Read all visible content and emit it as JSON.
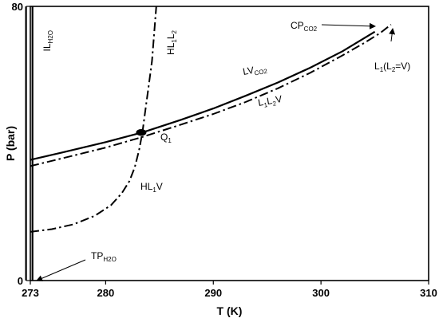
{
  "chart_data": {
    "type": "line",
    "xlabel": "T (K)",
    "ylabel": "P (bar)",
    "xlim": [
      273,
      310
    ],
    "ylim": [
      0,
      80
    ],
    "x_ticks": [
      "273",
      "280",
      "290",
      "300",
      "310"
    ],
    "y_ticks": [
      "0",
      "80"
    ],
    "grid": false,
    "series": [
      {
        "name": "LV_CO2",
        "style": "solid",
        "points": [
          [
            273,
            35.2
          ],
          [
            276,
            37.4
          ],
          [
            280,
            40.4
          ],
          [
            283.5,
            43.3
          ],
          [
            287,
            46.9
          ],
          [
            290,
            50.2
          ],
          [
            293,
            53.9
          ],
          [
            296,
            57.8
          ],
          [
            299,
            62.1
          ],
          [
            302,
            66.9
          ],
          [
            305,
            72.6
          ]
        ]
      },
      {
        "name": "L1L2V",
        "style": "dash-dot",
        "points": [
          [
            273,
            33.4
          ],
          [
            276,
            35.7
          ],
          [
            280,
            38.8
          ],
          [
            283.3,
            41.8
          ],
          [
            287,
            45.5
          ],
          [
            290,
            48.6
          ],
          [
            293,
            52.1
          ],
          [
            296,
            56.1
          ],
          [
            299,
            60.6
          ],
          [
            302,
            65.7
          ],
          [
            304,
            69.3
          ],
          [
            305.5,
            72.2
          ],
          [
            306.5,
            74.7
          ]
        ]
      },
      {
        "name": "HL1V",
        "style": "dash-dot",
        "points": [
          [
            273,
            14.2
          ],
          [
            275,
            15.0
          ],
          [
            277,
            16.4
          ],
          [
            279,
            18.9
          ],
          [
            280.5,
            22.0
          ],
          [
            281.5,
            25.5
          ],
          [
            282.2,
            29.0
          ],
          [
            282.7,
            33.0
          ],
          [
            283.1,
            38.0
          ],
          [
            283.4,
            43.0
          ]
        ]
      },
      {
        "name": "HL1L2",
        "style": "dash-dot",
        "points": [
          [
            283.4,
            43.0
          ],
          [
            283.7,
            50.0
          ],
          [
            284.0,
            57.0
          ],
          [
            284.3,
            64.0
          ],
          [
            284.5,
            72.0
          ],
          [
            284.7,
            80.0
          ]
        ]
      },
      {
        "name": "IL_H2O",
        "style": "solid",
        "points": [
          [
            273.2,
            0
          ],
          [
            273.2,
            80
          ]
        ]
      }
    ],
    "plot_border_line": {
      "style": "solid",
      "points": [
        [
          272.6,
          0
        ],
        [
          272.6,
          80
        ]
      ]
    },
    "quadruple_point": {
      "x": 283.3,
      "y": 43.2
    },
    "annotations": [
      {
        "id": "IL",
        "parts": [
          [
            "I",
            false
          ],
          [
            "L",
            false
          ],
          [
            "H2O",
            true
          ]
        ],
        "vertical": true
      },
      {
        "id": "HL1L2",
        "parts": [
          [
            "HL",
            false
          ],
          [
            "1",
            true
          ],
          [
            "L",
            false
          ],
          [
            "2",
            true
          ]
        ],
        "vertical": true
      },
      {
        "id": "CP",
        "parts": [
          [
            "CP",
            false
          ],
          [
            "CO2",
            true
          ]
        ]
      },
      {
        "id": "LV",
        "parts": [
          [
            "LV",
            false
          ],
          [
            "CO2",
            true
          ]
        ]
      },
      {
        "id": "L1L2V",
        "parts": [
          [
            "L",
            false
          ],
          [
            "1",
            true
          ],
          [
            "L",
            false
          ],
          [
            "2",
            true
          ],
          [
            "V",
            false
          ]
        ]
      },
      {
        "id": "L1L2eqV",
        "parts": [
          [
            "L",
            false
          ],
          [
            "1",
            true
          ],
          [
            "(L",
            false
          ],
          [
            "2",
            true
          ],
          [
            "=V)",
            false
          ]
        ]
      },
      {
        "id": "Q1",
        "parts": [
          [
            "Q",
            false
          ],
          [
            "1",
            true
          ]
        ]
      },
      {
        "id": "HL1V",
        "parts": [
          [
            "HL",
            false
          ],
          [
            "1",
            true
          ],
          [
            "V",
            false
          ]
        ]
      },
      {
        "id": "TP",
        "parts": [
          [
            "TP",
            false
          ],
          [
            "H2O",
            true
          ]
        ]
      }
    ]
  }
}
